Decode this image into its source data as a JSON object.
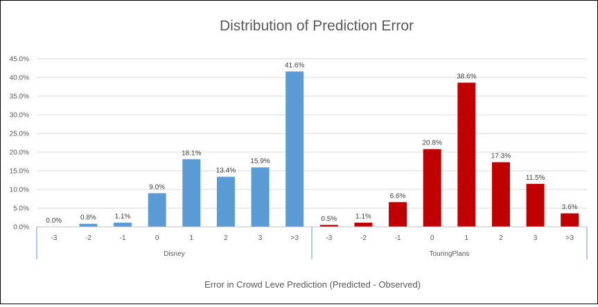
{
  "chart_data": {
    "type": "bar",
    "title": "Distribution of Prediction Error",
    "xlabel": "Error  in Crowd Leve Prediction (Predicted - Observed)",
    "ylabel": "",
    "ylim": [
      0,
      45
    ],
    "yticks": [
      "0.0%",
      "5.0%",
      "10.0%",
      "15.0%",
      "20.0%",
      "25.0%",
      "30.0%",
      "35.0%",
      "40.0%",
      "45.0%"
    ],
    "grid": true,
    "legend": "none",
    "groups": [
      {
        "name": "Disney",
        "color": "#5B9BD5",
        "categories": [
          "-3",
          "-2",
          "-1",
          "0",
          "1",
          "2",
          "3",
          ">3"
        ],
        "values": [
          0.0,
          0.8,
          1.1,
          9.0,
          18.1,
          13.4,
          15.9,
          41.6
        ],
        "labels": [
          "0.0%",
          "0.8%",
          "1.1%",
          "9.0%",
          "18.1%",
          "13.4%",
          "15.9%",
          "41.6%"
        ]
      },
      {
        "name": "TouringPlans",
        "color": "#C00000",
        "categories": [
          "-3",
          "-2",
          "-1",
          "0",
          "1",
          "2",
          "3",
          ">3"
        ],
        "values": [
          0.5,
          1.1,
          6.6,
          20.8,
          38.6,
          17.3,
          11.5,
          3.6
        ],
        "labels": [
          "0.5%",
          "1.1%",
          "6.6%",
          "20.8%",
          "38.6%",
          "17.3%",
          "11.5%",
          "3.6%"
        ]
      }
    ]
  }
}
